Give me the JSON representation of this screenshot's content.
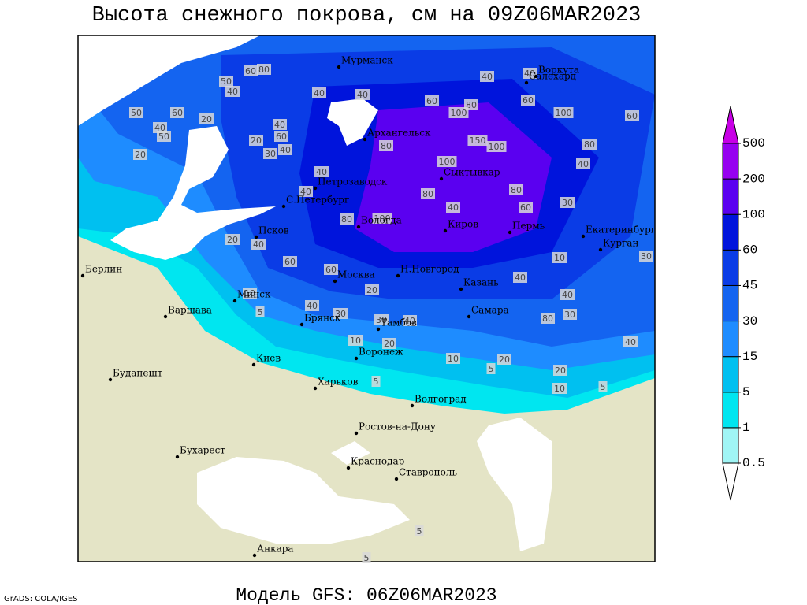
{
  "header": {
    "title": "Высота снежного покрова, см на 09Z06MAR2023"
  },
  "footer": {
    "model": "Модель GFS: 06Z06MAR2023",
    "credit": "GrADS: COLA/IGES"
  },
  "cities": [
    "Мурманск",
    "Воркута",
    "Салехард",
    "Архангельск",
    "Сыктывкар",
    "Петрозаводск",
    "С.Петербург",
    "Вологда",
    "Киров",
    "Пермь",
    "Екатеринбург",
    "Курган",
    "Псков",
    "Берлин",
    "Н.Новгород",
    "Казань",
    "Москва",
    "Минск",
    "Варшава",
    "Брянск",
    "Тамбов",
    "Самара",
    "Киев",
    "Воронеж",
    "Будапешт",
    "Харьков",
    "Волгоград",
    "Ростов-на-Дону",
    "Бухарест",
    "Краснодар",
    "Ставрополь",
    "Анкара"
  ],
  "contour_labels": [
    60,
    80,
    50,
    40,
    40,
    40,
    40,
    40,
    50,
    60,
    20,
    40,
    50,
    20,
    60,
    80,
    100,
    60,
    100,
    60,
    40,
    60,
    40,
    20,
    30,
    80,
    150,
    100,
    80,
    40,
    100,
    40,
    40,
    80,
    100,
    40,
    80,
    60,
    30,
    20,
    40,
    60,
    80,
    60,
    30,
    10,
    40,
    40,
    30,
    80,
    20,
    10,
    5,
    40,
    30,
    40,
    30,
    10,
    20,
    10,
    5,
    20,
    20,
    10,
    5,
    40,
    5,
    5,
    5
  ],
  "legend": {
    "levels": [
      0.5,
      1,
      5,
      15,
      30,
      45,
      60,
      100,
      200,
      500
    ],
    "colors": [
      "#ffffff",
      "#a0f5f5",
      "#00e6f0",
      "#00c0f0",
      "#1e8cff",
      "#1464f0",
      "#0a3ce6",
      "#0014dc",
      "#5a00f0",
      "#9600f0",
      "#c800e6"
    ]
  }
}
